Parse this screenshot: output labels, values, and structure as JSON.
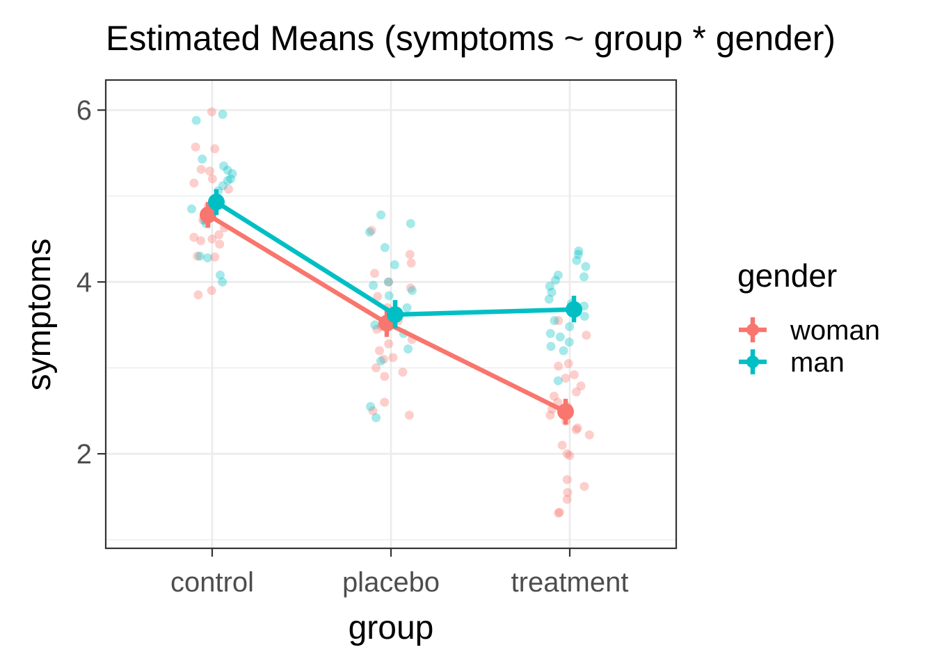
{
  "chart_data": {
    "type": "line",
    "title": "Estimated Means (symptoms ~ group * gender)",
    "xlabel": "group",
    "ylabel": "symptoms",
    "categories": [
      "control",
      "placebo",
      "treatment"
    ],
    "ylim": [
      0.9,
      6.35
    ],
    "yticks": [
      "2",
      "4",
      "6"
    ],
    "grid": true,
    "legend": {
      "title": "gender",
      "position": "right"
    },
    "series": [
      {
        "name": "woman",
        "color": "#F8766D",
        "means": [
          4.78,
          3.52,
          2.49
        ],
        "ci_low": [
          4.63,
          3.36,
          2.34
        ],
        "ci_high": [
          4.93,
          3.68,
          2.64
        ],
        "raw_points": [
          [
            5.98,
            5.55,
            5.57,
            5.31,
            5.29,
            5.2,
            5.15,
            5.08,
            4.97,
            4.88,
            4.72,
            4.63,
            4.55,
            4.52,
            4.5,
            4.48,
            4.44,
            4.3,
            4.29,
            3.9,
            3.85
          ],
          [
            4.6,
            4.32,
            4.22,
            4.1,
            4.0,
            3.93,
            3.83,
            3.7,
            3.62,
            3.55,
            3.48,
            3.45,
            3.33,
            3.28,
            3.2,
            3.12,
            3.1,
            3.0,
            2.95,
            2.9,
            2.6,
            2.5,
            2.45
          ],
          [
            3.55,
            3.38,
            3.05,
            3.02,
            2.92,
            2.88,
            2.79,
            2.72,
            2.67,
            2.6,
            2.55,
            2.52,
            2.45,
            2.38,
            2.3,
            2.28,
            2.22,
            2.1,
            2.0,
            1.98,
            1.7,
            1.62,
            1.55,
            1.47,
            1.32,
            1.31
          ]
        ]
      },
      {
        "name": "man",
        "color": "#00BFC4",
        "means": [
          4.93,
          3.62,
          3.68
        ],
        "ci_low": [
          4.78,
          3.46,
          3.53
        ],
        "ci_high": [
          5.08,
          3.79,
          3.84
        ],
        "raw_points": [
          [
            5.95,
            5.88,
            5.43,
            5.35,
            5.3,
            5.26,
            5.2,
            5.18,
            5.12,
            5.06,
            4.97,
            4.85,
            4.72,
            4.68,
            4.3,
            4.28,
            4.08,
            4.0
          ],
          [
            4.78,
            4.68,
            4.58,
            4.4,
            4.2,
            4.0,
            3.96,
            3.9,
            3.84,
            3.7,
            3.66,
            3.6,
            3.5,
            3.4,
            3.22,
            3.08,
            2.55,
            2.42
          ],
          [
            4.36,
            4.32,
            4.25,
            4.18,
            4.08,
            4.06,
            4.02,
            3.95,
            3.88,
            3.8,
            3.75,
            3.72,
            3.6,
            3.55,
            3.48,
            3.4,
            3.36,
            3.3,
            3.25,
            3.2,
            2.85
          ]
        ]
      }
    ]
  }
}
